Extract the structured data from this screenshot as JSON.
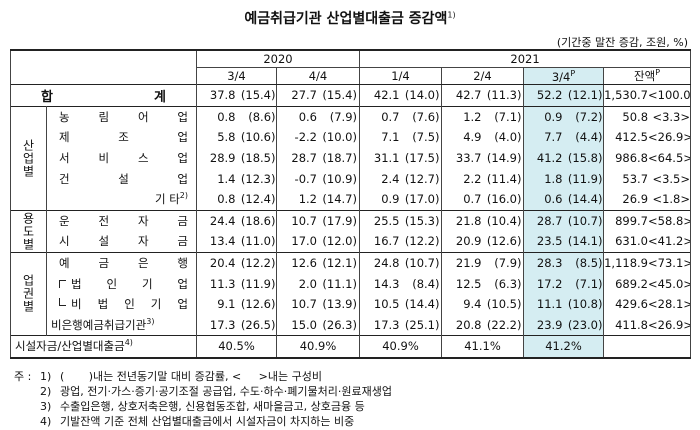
{
  "header": {
    "title": "예금취급기관 산업별대출금 증감액",
    "title_note": "1)",
    "unit": "(기간중 말잔 증감, 조원, %)"
  },
  "table": {
    "years": [
      "2020",
      "2021"
    ],
    "columns": [
      {
        "label": "3/4"
      },
      {
        "label": "4/4"
      },
      {
        "label": "1/4"
      },
      {
        "label": "2/4"
      },
      {
        "label": "3/4",
        "note": "P"
      },
      {
        "label": "잔액",
        "note": "P"
      }
    ],
    "total": {
      "label": "합 계",
      "cells": [
        [
          "37.8",
          "(15.4)"
        ],
        [
          "27.7",
          "(15.4)"
        ],
        [
          "42.1",
          "(14.0)"
        ],
        [
          "42.7",
          "(11.3)"
        ],
        [
          "52.2",
          "(12.1)"
        ],
        [
          "1,530.7",
          "<100.0>"
        ]
      ]
    },
    "groups": [
      {
        "label": "산업별",
        "rows": [
          {
            "label": "농 림 어 업",
            "cells": [
              [
                "0.8",
                "(8.6)"
              ],
              [
                "0.6",
                "(7.9)"
              ],
              [
                "0.7",
                "(7.6)"
              ],
              [
                "1.2",
                "(7.1)"
              ],
              [
                "0.9",
                "(7.2)"
              ],
              [
                "50.8",
                "<3.3>"
              ]
            ]
          },
          {
            "label": "제 조 업",
            "cells": [
              [
                "5.8",
                "(10.6)"
              ],
              [
                "-2.2",
                "(10.0)"
              ],
              [
                "7.1",
                "(7.5)"
              ],
              [
                "4.9",
                "(4.0)"
              ],
              [
                "7.7",
                "(4.4)"
              ],
              [
                "412.5",
                "<26.9>"
              ]
            ]
          },
          {
            "label": "서 비 스 업",
            "cells": [
              [
                "28.9",
                "(18.5)"
              ],
              [
                "28.7",
                "(18.7)"
              ],
              [
                "31.1",
                "(17.5)"
              ],
              [
                "33.7",
                "(14.9)"
              ],
              [
                "41.2",
                "(15.8)"
              ],
              [
                "986.8",
                "<64.5>"
              ]
            ]
          },
          {
            "label": "건 설 업",
            "cells": [
              [
                "1.4",
                "(12.3)"
              ],
              [
                "-0.7",
                "(10.9)"
              ],
              [
                "2.4",
                "(12.7)"
              ],
              [
                "2.2",
                "(11.4)"
              ],
              [
                "1.8",
                "(11.9)"
              ],
              [
                "53.7",
                "<3.5>"
              ]
            ]
          },
          {
            "label": "기 타",
            "note": "2)",
            "cells": [
              [
                "0.8",
                "(12.4)"
              ],
              [
                "1.2",
                "(14.7)"
              ],
              [
                "0.9",
                "(17.0)"
              ],
              [
                "0.7",
                "(16.0)"
              ],
              [
                "0.6",
                "(14.4)"
              ],
              [
                "26.9",
                "<1.8>"
              ]
            ]
          }
        ]
      },
      {
        "label": "용도별",
        "rows": [
          {
            "label": "운 전 자 금",
            "cells": [
              [
                "24.4",
                "(18.6)"
              ],
              [
                "10.7",
                "(17.9)"
              ],
              [
                "25.5",
                "(15.3)"
              ],
              [
                "21.8",
                "(10.4)"
              ],
              [
                "28.7",
                "(10.7)"
              ],
              [
                "899.7",
                "<58.8>"
              ]
            ]
          },
          {
            "label": "시 설 자 금",
            "cells": [
              [
                "13.4",
                "(11.0)"
              ],
              [
                "17.0",
                "(12.0)"
              ],
              [
                "16.7",
                "(12.2)"
              ],
              [
                "20.9",
                "(12.6)"
              ],
              [
                "23.5",
                "(14.1)"
              ],
              [
                "631.0",
                "<41.2>"
              ]
            ]
          }
        ]
      },
      {
        "label": "업권별",
        "rows": [
          {
            "label": "예 금 은 행",
            "cells": [
              [
                "20.4",
                "(12.2)"
              ],
              [
                "12.6",
                "(12.1)"
              ],
              [
                "24.8",
                "(10.7)"
              ],
              [
                "21.9",
                "(7.9)"
              ],
              [
                "28.3",
                "(8.5)"
              ],
              [
                "1,118.9",
                "<73.1>"
              ]
            ]
          },
          {
            "label": "법 인 기 업",
            "cells": [
              [
                "11.3",
                "(11.9)"
              ],
              [
                "2.0",
                "(11.1)"
              ],
              [
                "14.3",
                "(8.4)"
              ],
              [
                "12.5",
                "(6.3)"
              ],
              [
                "17.2",
                "(7.1)"
              ],
              [
                "689.2",
                "<45.0>"
              ]
            ]
          },
          {
            "label": "비 법 인 기 업",
            "cells": [
              [
                "9.1",
                "(12.6)"
              ],
              [
                "10.7",
                "(13.9)"
              ],
              [
                "10.5",
                "(14.4)"
              ],
              [
                "9.4",
                "(10.5)"
              ],
              [
                "11.1",
                "(10.8)"
              ],
              [
                "429.6",
                "<28.1>"
              ]
            ]
          },
          {
            "label": "비은행예금취급기관",
            "note": "3)",
            "cells": [
              [
                "17.3",
                "(26.5)"
              ],
              [
                "15.0",
                "(26.3)"
              ],
              [
                "17.3",
                "(25.1)"
              ],
              [
                "20.8",
                "(22.2)"
              ],
              [
                "23.9",
                "(23.0)"
              ],
              [
                "411.8",
                "<26.9>"
              ]
            ]
          }
        ]
      }
    ],
    "share": {
      "label": "시설자금/산업별대출금",
      "note": "4)",
      "cells": [
        "40.5%",
        "40.9%",
        "40.9%",
        "41.1%",
        "41.2%"
      ]
    }
  },
  "notes": {
    "lead": "주 :",
    "items": [
      {
        "no": "1)",
        "text": "(       )내는 전년동기말 대비 증감률, <     >내는 구성비"
      },
      {
        "no": "2)",
        "text": "광업, 전기·가스·증기·공기조절 공급업, 수도·하수·폐기물처리·원료재생업"
      },
      {
        "no": "3)",
        "text": "수출입은행, 상호저축은행, 신용협동조합, 새마을금고, 상호금융 등"
      },
      {
        "no": "4)",
        "text": "기발잔액 기준 전체 산업별대출금에서 시설자금이 차지하는 비중"
      }
    ]
  }
}
